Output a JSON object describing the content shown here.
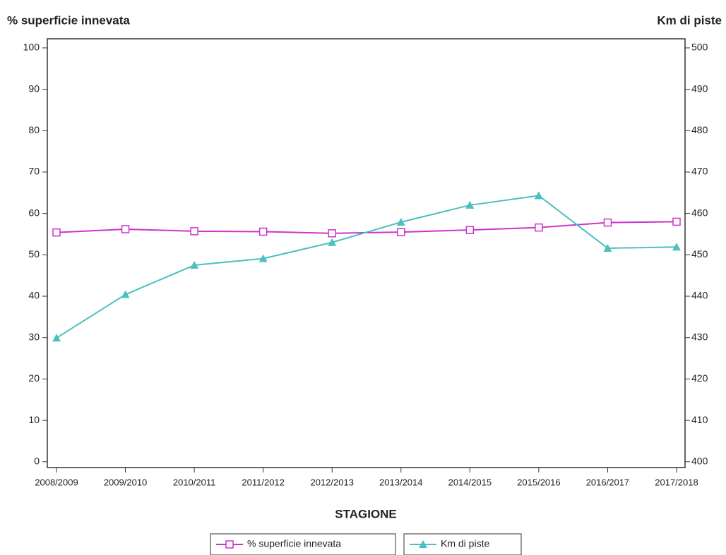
{
  "chart_data": {
    "type": "line",
    "y_label": "% superficie innevata",
    "y2_label": "Km di piste",
    "x_label": "STAGIONE",
    "categories": [
      "2008/2009",
      "2009/2010",
      "2010/2011",
      "2011/2012",
      "2012/2013",
      "2013/2014",
      "2014/2015",
      "2015/2016",
      "2016/2017",
      "2017/2018"
    ],
    "series": [
      {
        "name": "% superficie innevata",
        "color": "#cc33cc",
        "marker": "square",
        "values": [
          55.4,
          56.2,
          55.7,
          55.6,
          55.2,
          55.5,
          56.0,
          56.6,
          57.8,
          58.0
        ]
      },
      {
        "name": "Km di piste",
        "color": "#4cbfbf",
        "marker": "triangle",
        "axis": "y2",
        "values": [
          429.9,
          440.4,
          447.5,
          449.1,
          453.0,
          457.9,
          462.0,
          464.3,
          451.6,
          451.9
        ]
      }
    ],
    "ylim": [
      -1.4,
      102.2
    ],
    "yticks": [
      0,
      10,
      20,
      30,
      40,
      50,
      60,
      70,
      80,
      90,
      100
    ],
    "y2lim": [
      398.6,
      502.2
    ],
    "y2ticks": [
      400,
      410,
      420,
      430,
      440,
      450,
      460,
      470,
      480,
      490,
      500
    ],
    "legend": "bottom"
  }
}
